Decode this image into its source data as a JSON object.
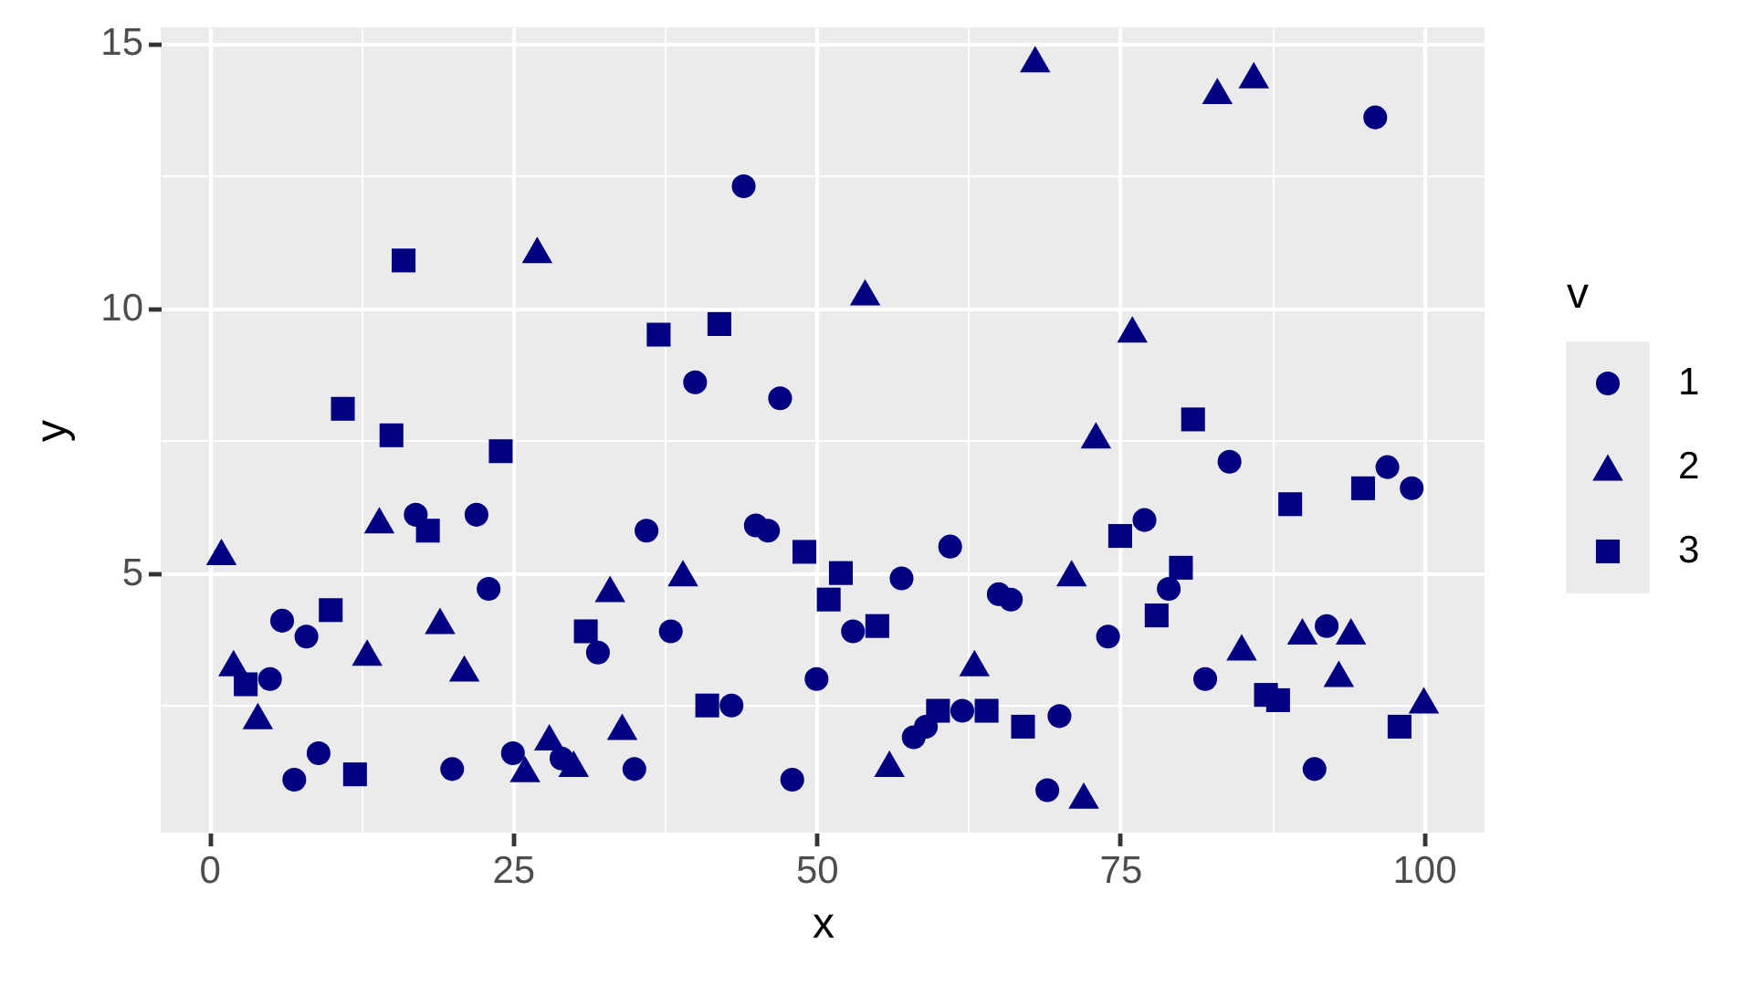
{
  "chart_data": {
    "type": "scatter",
    "xlabel": "x",
    "ylabel": "y",
    "legend_title": "v",
    "xlim": [
      -4,
      105
    ],
    "ylim": [
      0.1,
      15.3
    ],
    "xticks": [
      0,
      25,
      50,
      75,
      100
    ],
    "yticks": [
      5,
      10,
      15
    ],
    "grid": true,
    "legend": "right",
    "series": [
      {
        "name": "1",
        "color": "#000080",
        "marker": "circle",
        "x": [
          5,
          6,
          7,
          8,
          9,
          17,
          20,
          22,
          23,
          25,
          29,
          32,
          35,
          36,
          38,
          40,
          43,
          44,
          45,
          46,
          47,
          48,
          50,
          53,
          57,
          58,
          59,
          61,
          62,
          65,
          66,
          69,
          70,
          74,
          77,
          79,
          82,
          84,
          91,
          92,
          96,
          97,
          99
        ],
        "values": [
          3.0,
          4.1,
          1.1,
          3.8,
          1.6,
          6.1,
          1.3,
          6.1,
          4.7,
          1.6,
          1.5,
          3.5,
          1.3,
          5.8,
          3.9,
          8.6,
          2.5,
          12.3,
          5.9,
          5.8,
          8.3,
          1.1,
          3.0,
          3.9,
          4.9,
          1.9,
          2.1,
          5.5,
          2.4,
          4.6,
          4.5,
          0.9,
          2.3,
          3.8,
          6.0,
          4.7,
          3.0,
          7.1,
          1.3,
          4.0,
          13.6,
          7.0,
          6.6
        ]
      },
      {
        "name": "2",
        "color": "#000080",
        "marker": "triangle",
        "x": [
          1,
          2,
          4,
          13,
          14,
          19,
          21,
          26,
          27,
          28,
          30,
          33,
          34,
          39,
          54,
          56,
          63,
          68,
          71,
          72,
          73,
          76,
          83,
          85,
          86,
          90,
          93,
          94,
          100
        ],
        "values": [
          5.4,
          3.3,
          2.3,
          3.5,
          6.0,
          4.1,
          3.2,
          1.3,
          11.1,
          1.9,
          1.4,
          4.7,
          2.1,
          5.0,
          10.3,
          1.4,
          3.3,
          14.7,
          5.0,
          0.8,
          7.6,
          9.6,
          14.1,
          3.6,
          14.4,
          3.9,
          3.1,
          3.9,
          2.6
        ]
      },
      {
        "name": "3",
        "color": "#000080",
        "marker": "square",
        "x": [
          3,
          10,
          11,
          12,
          15,
          16,
          18,
          24,
          31,
          37,
          41,
          42,
          49,
          51,
          52,
          55,
          60,
          64,
          67,
          75,
          78,
          80,
          81,
          87,
          88,
          89,
          95,
          98
        ],
        "values": [
          2.9,
          4.3,
          8.1,
          1.2,
          7.6,
          10.9,
          5.8,
          7.3,
          3.9,
          9.5,
          2.5,
          9.7,
          5.4,
          4.5,
          5.0,
          4.0,
          2.4,
          2.4,
          2.1,
          5.7,
          4.2,
          5.1,
          7.9,
          2.7,
          2.6,
          6.3,
          6.6,
          2.1
        ]
      }
    ]
  }
}
